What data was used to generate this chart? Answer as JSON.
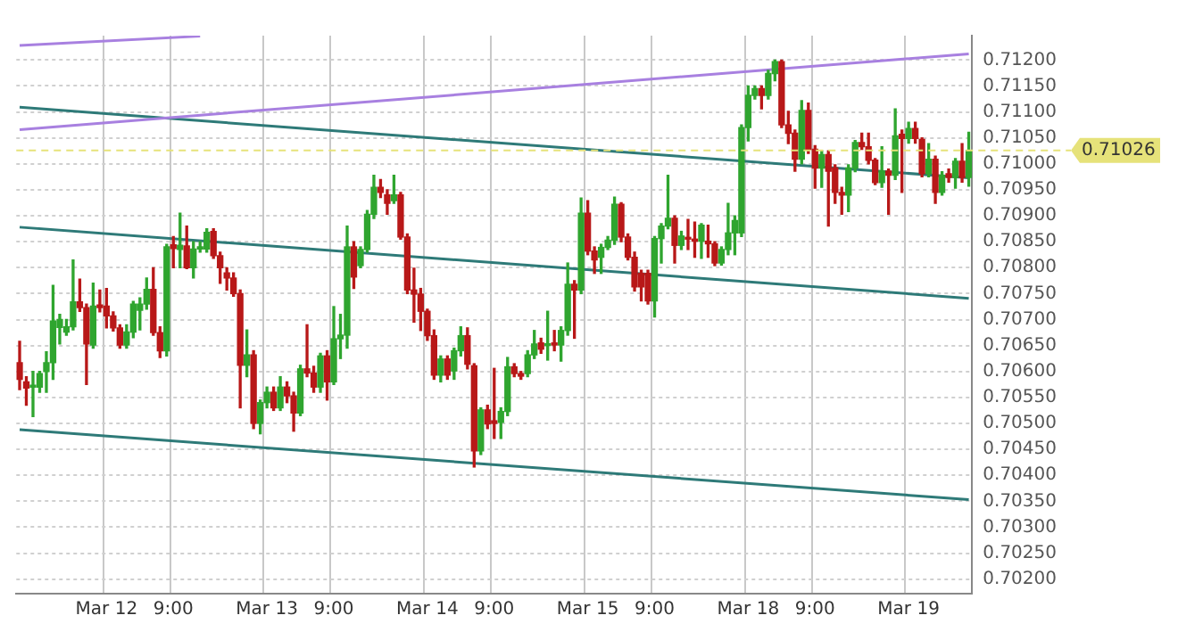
{
  "chart_data": {
    "type": "candlestick",
    "categories": [
      null,
      null,
      null,
      null,
      null,
      null,
      null,
      null,
      null,
      null,
      null,
      null,
      null,
      "Mar 12",
      null,
      null,
      null,
      null,
      null,
      null,
      null,
      null,
      null,
      "9:00",
      null,
      null,
      null,
      null,
      null,
      null,
      null,
      null,
      null,
      null,
      null,
      null,
      null,
      "Mar 13",
      null,
      null,
      null,
      null,
      null,
      null,
      null,
      null,
      null,
      "9:00",
      null,
      null,
      null,
      null,
      null,
      null,
      null,
      null,
      null,
      null,
      null,
      null,
      null,
      "Mar 14",
      null,
      null,
      null,
      null,
      null,
      null,
      null,
      null,
      null,
      "9:00",
      null,
      null,
      null,
      null,
      null,
      null,
      null,
      null,
      null,
      null,
      null,
      null,
      null,
      "Mar 15",
      null,
      null,
      null,
      null,
      null,
      null,
      null,
      null,
      null,
      "9:00",
      null,
      null,
      null,
      null,
      null,
      null,
      null,
      null,
      null,
      null,
      null,
      null,
      null,
      "Mar 18",
      null,
      null,
      null,
      null,
      null,
      null,
      null,
      null,
      null,
      "9:00",
      null,
      null,
      null,
      null,
      null,
      null,
      null,
      null,
      null,
      null,
      null,
      null,
      null,
      "Mar 19",
      null,
      null,
      null,
      null,
      null,
      null,
      null,
      null,
      null
    ],
    "ohlc": [
      [
        0.70617,
        0.70658,
        0.70565,
        0.70585
      ],
      [
        0.7058,
        0.7059,
        0.70535,
        0.70568
      ],
      [
        0.7057,
        0.706,
        0.70513,
        0.70572
      ],
      [
        0.7057,
        0.706,
        0.7056,
        0.70596
      ],
      [
        0.706,
        0.70638,
        0.7056,
        0.70617
      ],
      [
        0.70617,
        0.70766,
        0.70585,
        0.70697
      ],
      [
        0.70685,
        0.7071,
        0.70653,
        0.707
      ],
      [
        0.70676,
        0.707,
        0.7067,
        0.70686
      ],
      [
        0.70686,
        0.70815,
        0.7068,
        0.70734
      ],
      [
        0.70734,
        0.70778,
        0.70716,
        0.70723
      ],
      [
        0.70723,
        0.7073,
        0.70575,
        0.70653
      ],
      [
        0.70651,
        0.7077,
        0.70645,
        0.70726
      ],
      [
        0.70728,
        0.70757,
        0.70715,
        0.70723
      ],
      [
        0.70726,
        0.7076,
        0.70684,
        0.70707
      ],
      [
        0.70707,
        0.70715,
        0.70678,
        0.70684
      ],
      [
        0.70684,
        0.7069,
        0.70645,
        0.70651
      ],
      [
        0.70651,
        0.7069,
        0.70645,
        0.70676
      ],
      [
        0.70676,
        0.70735,
        0.70665,
        0.7073
      ],
      [
        0.70718,
        0.70742,
        0.7068,
        0.7073
      ],
      [
        0.7073,
        0.7078,
        0.7072,
        0.70758
      ],
      [
        0.70758,
        0.708,
        0.7067,
        0.70675
      ],
      [
        0.70675,
        0.70686,
        0.70627,
        0.7064
      ],
      [
        0.7064,
        0.70845,
        0.7063,
        0.7084
      ],
      [
        0.70844,
        0.7086,
        0.708,
        0.70837
      ],
      [
        0.70835,
        0.70905,
        0.708,
        0.70843
      ],
      [
        0.70842,
        0.7088,
        0.70798,
        0.708
      ],
      [
        0.708,
        0.7085,
        0.7078,
        0.70836
      ],
      [
        0.70836,
        0.7085,
        0.7083,
        0.7084
      ],
      [
        0.70836,
        0.70875,
        0.7083,
        0.70868
      ],
      [
        0.7087,
        0.70875,
        0.70818,
        0.70823
      ],
      [
        0.70823,
        0.7083,
        0.7077,
        0.708
      ],
      [
        0.7079,
        0.708,
        0.70757,
        0.7078
      ],
      [
        0.7078,
        0.7079,
        0.70745,
        0.7075
      ],
      [
        0.7075,
        0.70757,
        0.7053,
        0.70612
      ],
      [
        0.70612,
        0.7068,
        0.7059,
        0.70632
      ],
      [
        0.70632,
        0.7064,
        0.7049,
        0.705
      ],
      [
        0.705,
        0.70545,
        0.7048,
        0.7054
      ],
      [
        0.7054,
        0.7057,
        0.7053,
        0.7056
      ],
      [
        0.7056,
        0.7057,
        0.70525,
        0.7053
      ],
      [
        0.7053,
        0.7059,
        0.70525,
        0.7057
      ],
      [
        0.7057,
        0.7058,
        0.7054,
        0.70553
      ],
      [
        0.70553,
        0.7056,
        0.70485,
        0.7052
      ],
      [
        0.7052,
        0.70612,
        0.70515,
        0.70605
      ],
      [
        0.70605,
        0.7069,
        0.7059,
        0.70597
      ],
      [
        0.70597,
        0.7061,
        0.7056,
        0.7057
      ],
      [
        0.7057,
        0.70635,
        0.7056,
        0.7063
      ],
      [
        0.7063,
        0.7064,
        0.70545,
        0.7058
      ],
      [
        0.7058,
        0.70725,
        0.70575,
        0.70663
      ],
      [
        0.70663,
        0.7071,
        0.70625,
        0.7067
      ],
      [
        0.7067,
        0.7088,
        0.70645,
        0.7084
      ],
      [
        0.7084,
        0.7085,
        0.7076,
        0.70782
      ],
      [
        0.70804,
        0.7084,
        0.708,
        0.70835
      ],
      [
        0.70835,
        0.7091,
        0.7083,
        0.70903
      ],
      [
        0.70903,
        0.70978,
        0.70895,
        0.70955
      ],
      [
        0.70955,
        0.7097,
        0.70935,
        0.70945
      ],
      [
        0.7094,
        0.7095,
        0.70903,
        0.70924
      ],
      [
        0.70929,
        0.70978,
        0.70924,
        0.7094
      ],
      [
        0.7094,
        0.70945,
        0.70855,
        0.70859
      ],
      [
        0.70859,
        0.70865,
        0.7075,
        0.70757
      ],
      [
        0.70757,
        0.70799,
        0.70695,
        0.70749
      ],
      [
        0.70749,
        0.7076,
        0.70679,
        0.70716
      ],
      [
        0.70716,
        0.7072,
        0.7066,
        0.70669
      ],
      [
        0.70669,
        0.7068,
        0.70585,
        0.70593
      ],
      [
        0.70593,
        0.7063,
        0.7058,
        0.70624
      ],
      [
        0.70624,
        0.7063,
        0.70585,
        0.70593
      ],
      [
        0.70601,
        0.70645,
        0.70585,
        0.7064
      ],
      [
        0.7064,
        0.70686,
        0.7063,
        0.70669
      ],
      [
        0.70669,
        0.70684,
        0.70605,
        0.70614
      ],
      [
        0.70611,
        0.70615,
        0.70416,
        0.70447
      ],
      [
        0.70447,
        0.7053,
        0.7044,
        0.70526
      ],
      [
        0.70526,
        0.70535,
        0.7049,
        0.70499
      ],
      [
        0.70505,
        0.70606,
        0.70471,
        0.705
      ],
      [
        0.70502,
        0.7053,
        0.70471,
        0.70523
      ],
      [
        0.70523,
        0.70627,
        0.70515,
        0.70609
      ],
      [
        0.70609,
        0.70615,
        0.7059,
        0.70596
      ],
      [
        0.70596,
        0.706,
        0.70585,
        0.70591
      ],
      [
        0.70596,
        0.7064,
        0.7059,
        0.70632
      ],
      [
        0.70632,
        0.70679,
        0.70625,
        0.70653
      ],
      [
        0.70655,
        0.70664,
        0.70635,
        0.70643
      ],
      [
        0.7065,
        0.70716,
        0.70622,
        0.70653
      ],
      [
        0.70655,
        0.70679,
        0.7064,
        0.70651
      ],
      [
        0.70651,
        0.70686,
        0.7062,
        0.70679
      ],
      [
        0.70679,
        0.70809,
        0.7067,
        0.70768
      ],
      [
        0.70768,
        0.70775,
        0.70664,
        0.70757
      ],
      [
        0.70757,
        0.70934,
        0.7075,
        0.70905
      ],
      [
        0.70905,
        0.70929,
        0.70825,
        0.70832
      ],
      [
        0.70832,
        0.7084,
        0.70789,
        0.70815
      ],
      [
        0.7082,
        0.70845,
        0.70789,
        0.70839
      ],
      [
        0.70839,
        0.7086,
        0.70835,
        0.70853
      ],
      [
        0.70853,
        0.70936,
        0.70845,
        0.70922
      ],
      [
        0.70922,
        0.70925,
        0.7085,
        0.70859
      ],
      [
        0.70859,
        0.70865,
        0.70815,
        0.7082
      ],
      [
        0.7082,
        0.7083,
        0.70755,
        0.70763
      ],
      [
        0.70789,
        0.70795,
        0.70736,
        0.70763
      ],
      [
        0.70789,
        0.70795,
        0.7073,
        0.70736
      ],
      [
        0.70736,
        0.7086,
        0.70705,
        0.70856
      ],
      [
        0.70856,
        0.70885,
        0.70809,
        0.7088
      ],
      [
        0.7088,
        0.70978,
        0.70875,
        0.70895
      ],
      [
        0.70895,
        0.709,
        0.70809,
        0.70843
      ],
      [
        0.70843,
        0.7087,
        0.70835,
        0.70861
      ],
      [
        0.70858,
        0.70893,
        0.70835,
        0.70855
      ],
      [
        0.70855,
        0.70888,
        0.7082,
        0.70851
      ],
      [
        0.70851,
        0.70885,
        0.70818,
        0.70882
      ],
      [
        0.70851,
        0.70882,
        0.7082,
        0.70846
      ],
      [
        0.70846,
        0.7085,
        0.70804,
        0.70809
      ],
      [
        0.70809,
        0.7084,
        0.70805,
        0.70835
      ],
      [
        0.70835,
        0.70924,
        0.70825,
        0.70867
      ],
      [
        0.70867,
        0.709,
        0.70825,
        0.70891
      ],
      [
        0.70867,
        0.71075,
        0.7086,
        0.7107
      ],
      [
        0.7107,
        0.7115,
        0.71044,
        0.71132
      ],
      [
        0.71132,
        0.7115,
        0.71125,
        0.71145
      ],
      [
        0.71145,
        0.7115,
        0.71106,
        0.71132
      ],
      [
        0.71132,
        0.7118,
        0.71125,
        0.71174
      ],
      [
        0.71174,
        0.712,
        0.7116,
        0.71197
      ],
      [
        0.71197,
        0.712,
        0.7107,
        0.71075
      ],
      [
        0.71075,
        0.71101,
        0.71039,
        0.71059
      ],
      [
        0.71059,
        0.71065,
        0.70986,
        0.71009
      ],
      [
        0.71009,
        0.71122,
        0.71,
        0.71103
      ],
      [
        0.71103,
        0.71117,
        0.7102,
        0.71028
      ],
      [
        0.71028,
        0.71035,
        0.70953,
        0.70992
      ],
      [
        0.70992,
        0.71025,
        0.70955,
        0.71018
      ],
      [
        0.71018,
        0.71025,
        0.7088,
        0.70986
      ],
      [
        0.70992,
        0.70998,
        0.70924,
        0.70945
      ],
      [
        0.70945,
        0.70955,
        0.70903,
        0.7094
      ],
      [
        0.7094,
        0.70998,
        0.70908,
        0.70992
      ],
      [
        0.70992,
        0.71045,
        0.70985,
        0.71041
      ],
      [
        0.71041,
        0.71059,
        0.71028,
        0.71033
      ],
      [
        0.71033,
        0.71059,
        0.71,
        0.71007
      ],
      [
        0.71007,
        0.7101,
        0.7096,
        0.70964
      ],
      [
        0.70964,
        0.71033,
        0.70955,
        0.70986
      ],
      [
        0.70986,
        0.7099,
        0.70903,
        0.70978
      ],
      [
        0.70978,
        0.71106,
        0.7097,
        0.71054
      ],
      [
        0.71057,
        0.71065,
        0.70945,
        0.71049
      ],
      [
        0.71049,
        0.7108,
        0.7104,
        0.71068
      ],
      [
        0.71068,
        0.7108,
        0.7104,
        0.71049
      ],
      [
        0.71047,
        0.7105,
        0.70975,
        0.70981
      ],
      [
        0.70981,
        0.71039,
        0.70975,
        0.71009
      ],
      [
        0.71009,
        0.71015,
        0.70924,
        0.70945
      ],
      [
        0.70945,
        0.70985,
        0.7094,
        0.70978
      ],
      [
        0.70981,
        0.7099,
        0.70965,
        0.70974
      ],
      [
        0.70974,
        0.7101,
        0.70953,
        0.71005
      ],
      [
        0.71005,
        0.71039,
        0.70965,
        0.70974
      ],
      [
        0.70974,
        0.71061,
        0.70957,
        0.71026
      ]
    ],
    "series": [
      {
        "type": "line",
        "color": "#a880e0",
        "values": [
          0.71228,
          null,
          null,
          null,
          null,
          null,
          null,
          null,
          null,
          null,
          null,
          null,
          null,
          null,
          null,
          null,
          null,
          null,
          null,
          null,
          null,
          null,
          null,
          null,
          null,
          null,
          null,
          0.71246,
          null,
          null,
          null,
          null,
          null,
          null,
          null,
          null,
          null,
          null,
          null,
          null,
          null,
          null,
          null,
          null,
          null,
          null,
          null,
          null,
          null,
          null,
          null,
          null,
          null,
          null,
          null,
          null,
          null,
          null,
          null,
          null,
          null,
          null,
          null,
          null,
          null,
          null,
          null,
          null,
          null,
          null,
          null,
          null,
          null,
          null,
          null,
          null,
          null,
          null,
          null,
          null,
          null,
          null,
          null,
          null,
          null,
          null,
          null,
          null,
          null,
          null,
          null,
          null,
          null,
          null,
          null,
          null,
          null,
          null,
          null,
          null,
          null,
          null,
          null,
          null,
          null,
          null,
          null,
          null,
          null,
          null,
          null,
          null,
          null,
          null,
          null,
          null,
          null,
          null,
          null,
          null,
          null,
          null,
          null,
          null,
          null,
          null,
          null,
          null,
          null,
          null,
          null,
          null,
          null,
          null,
          null,
          null,
          null,
          null,
          null,
          null,
          null,
          null,
          null
        ]
      },
      {
        "type": "line",
        "color": "#a880e0",
        "values": [
          0.71066,
          null,
          null,
          null,
          null,
          null,
          null,
          null,
          null,
          null,
          null,
          null,
          null,
          null,
          null,
          null,
          null,
          null,
          null,
          null,
          null,
          null,
          null,
          null,
          null,
          null,
          null,
          null,
          null,
          null,
          null,
          null,
          null,
          null,
          null,
          null,
          null,
          null,
          null,
          null,
          null,
          null,
          null,
          null,
          null,
          null,
          null,
          null,
          null,
          null,
          null,
          null,
          null,
          null,
          null,
          null,
          null,
          null,
          null,
          null,
          null,
          null,
          null,
          null,
          null,
          null,
          null,
          null,
          null,
          null,
          null,
          null,
          null,
          null,
          null,
          null,
          null,
          null,
          null,
          null,
          null,
          null,
          null,
          null,
          null,
          null,
          null,
          null,
          null,
          null,
          null,
          null,
          null,
          null,
          null,
          null,
          null,
          null,
          null,
          null,
          null,
          null,
          null,
          null,
          null,
          null,
          null,
          null,
          null,
          null,
          null,
          null,
          null,
          null,
          null,
          null,
          null,
          null,
          null,
          null,
          null,
          null,
          null,
          null,
          null,
          null,
          null,
          null,
          null,
          null,
          null,
          null,
          null,
          null,
          null,
          null,
          null,
          null,
          null,
          null,
          null,
          null,
          0.71212
        ]
      },
      {
        "type": "line",
        "color": "#2e7a78",
        "values": [
          0.71109,
          null,
          null,
          null,
          null,
          null,
          null,
          null,
          null,
          null,
          null,
          null,
          null,
          null,
          null,
          null,
          null,
          null,
          null,
          null,
          null,
          null,
          null,
          null,
          null,
          null,
          null,
          null,
          null,
          null,
          null,
          null,
          null,
          null,
          null,
          null,
          null,
          null,
          null,
          null,
          null,
          null,
          null,
          null,
          null,
          null,
          null,
          null,
          null,
          null,
          null,
          null,
          null,
          null,
          null,
          null,
          null,
          null,
          null,
          null,
          null,
          null,
          null,
          null,
          null,
          null,
          null,
          null,
          null,
          null,
          null,
          null,
          null,
          null,
          null,
          null,
          null,
          null,
          null,
          null,
          null,
          null,
          null,
          null,
          null,
          null,
          null,
          null,
          null,
          null,
          null,
          null,
          null,
          null,
          null,
          null,
          null,
          null,
          null,
          null,
          null,
          null,
          null,
          null,
          null,
          null,
          null,
          null,
          null,
          null,
          null,
          null,
          null,
          null,
          null,
          null,
          null,
          null,
          null,
          null,
          null,
          null,
          null,
          null,
          null,
          null,
          null,
          null,
          null,
          null,
          null,
          null,
          null,
          null,
          null,
          null,
          null,
          null,
          null,
          null,
          null,
          null,
          0.70973
        ]
      },
      {
        "type": "line",
        "color": "#2e7a78",
        "values": [
          0.70878,
          null,
          null,
          null,
          null,
          null,
          null,
          null,
          null,
          null,
          null,
          null,
          null,
          null,
          null,
          null,
          null,
          null,
          null,
          null,
          null,
          null,
          null,
          null,
          null,
          null,
          null,
          null,
          null,
          null,
          null,
          null,
          null,
          null,
          null,
          null,
          null,
          null,
          null,
          null,
          null,
          null,
          null,
          null,
          null,
          null,
          null,
          null,
          null,
          null,
          null,
          null,
          null,
          null,
          null,
          null,
          null,
          null,
          null,
          null,
          null,
          null,
          null,
          null,
          null,
          null,
          null,
          null,
          null,
          null,
          null,
          null,
          null,
          null,
          null,
          null,
          null,
          null,
          null,
          null,
          null,
          null,
          null,
          null,
          null,
          null,
          null,
          null,
          null,
          null,
          null,
          null,
          null,
          null,
          null,
          null,
          null,
          null,
          null,
          null,
          null,
          null,
          null,
          null,
          null,
          null,
          null,
          null,
          null,
          null,
          null,
          null,
          null,
          null,
          null,
          null,
          null,
          null,
          null,
          null,
          null,
          null,
          null,
          null,
          null,
          null,
          null,
          null,
          null,
          null,
          null,
          null,
          null,
          null,
          null,
          null,
          null,
          null,
          null,
          null,
          null,
          null,
          0.70741
        ]
      },
      {
        "type": "line",
        "color": "#2e7a78",
        "values": [
          0.70488,
          null,
          null,
          null,
          null,
          null,
          null,
          null,
          null,
          null,
          null,
          null,
          null,
          null,
          null,
          null,
          null,
          null,
          null,
          null,
          null,
          null,
          null,
          null,
          null,
          null,
          null,
          null,
          null,
          null,
          null,
          null,
          null,
          null,
          null,
          null,
          null,
          null,
          null,
          null,
          null,
          null,
          null,
          null,
          null,
          null,
          null,
          null,
          null,
          null,
          null,
          null,
          null,
          null,
          null,
          null,
          null,
          null,
          null,
          null,
          null,
          null,
          null,
          null,
          null,
          null,
          null,
          null,
          null,
          null,
          null,
          null,
          null,
          null,
          null,
          null,
          null,
          null,
          null,
          null,
          null,
          null,
          null,
          null,
          null,
          null,
          null,
          null,
          null,
          null,
          null,
          null,
          null,
          null,
          null,
          null,
          null,
          null,
          null,
          null,
          null,
          null,
          null,
          null,
          null,
          null,
          null,
          null,
          null,
          null,
          null,
          null,
          null,
          null,
          null,
          null,
          null,
          null,
          null,
          null,
          null,
          null,
          null,
          null,
          null,
          null,
          null,
          null,
          null,
          null,
          null,
          null,
          null,
          null,
          null,
          null,
          null,
          null,
          null,
          null,
          null,
          null,
          0.70353
        ]
      }
    ],
    "ylim": [
      0.70172,
      0.71247
    ],
    "yticks": [
      {
        "value": 0.702,
        "label": "0.70200"
      },
      {
        "value": 0.7025,
        "label": "0.70250"
      },
      {
        "value": 0.703,
        "label": "0.70300"
      },
      {
        "value": 0.7035,
        "label": "0.70350"
      },
      {
        "value": 0.704,
        "label": "0.70400"
      },
      {
        "value": 0.7045,
        "label": "0.70450"
      },
      {
        "value": 0.705,
        "label": "0.70500"
      },
      {
        "value": 0.7055,
        "label": "0.70550"
      },
      {
        "value": 0.706,
        "label": "0.70600"
      },
      {
        "value": 0.7065,
        "label": "0.70650"
      },
      {
        "value": 0.707,
        "label": "0.70700"
      },
      {
        "value": 0.7075,
        "label": "0.70750"
      },
      {
        "value": 0.708,
        "label": "0.70800"
      },
      {
        "value": 0.7085,
        "label": "0.70850"
      },
      {
        "value": 0.709,
        "label": "0.70900"
      },
      {
        "value": 0.7095,
        "label": "0.70950"
      },
      {
        "value": 0.71,
        "label": "0.71000"
      },
      {
        "value": 0.7105,
        "label": "0.71050"
      },
      {
        "value": 0.711,
        "label": "0.71100"
      },
      {
        "value": 0.7115,
        "label": "0.71150"
      },
      {
        "value": 0.712,
        "label": "0.71200"
      }
    ],
    "ref_lines": [
      {
        "axis": "y",
        "value": 0.71026,
        "label": "0.71026",
        "color": "#e6e27a"
      }
    ],
    "grid": true,
    "legend": false
  }
}
